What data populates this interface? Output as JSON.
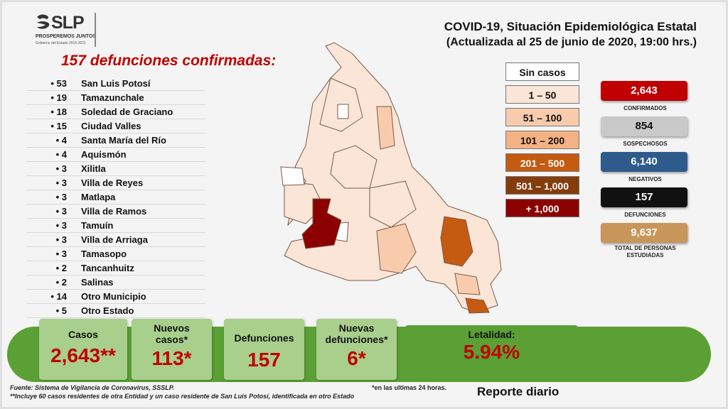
{
  "logo": {
    "word": "SLP",
    "tagline": "PROSPEREMOS JUNTOS",
    "government": "Gobierno del Estado 2015-2021"
  },
  "header": {
    "title": "COVID-19, Situación Epidemiológica Estatal",
    "subtitle": "(Actualizada al 25 de junio de 2020, 19:00 hrs.)"
  },
  "deaths": {
    "heading": "157 defunciones confirmadas:",
    "items": [
      {
        "count": "• 53",
        "name": "San Luis Potosí"
      },
      {
        "count": "• 19",
        "name": "Tamazunchale"
      },
      {
        "count": "• 18",
        "name": "Soledad de Graciano"
      },
      {
        "count": "• 15",
        "name": "Ciudad Valles"
      },
      {
        "count": "• 4",
        "name": "Santa María del Río"
      },
      {
        "count": "• 4",
        "name": "Aquismón"
      },
      {
        "count": "• 3",
        "name": "Xilitla"
      },
      {
        "count": "• 3",
        "name": "Villa de Reyes"
      },
      {
        "count": "• 3",
        "name": "Matlapa"
      },
      {
        "count": "• 3",
        "name": "Villa de Ramos"
      },
      {
        "count": "• 3",
        "name": "Tamuín"
      },
      {
        "count": "• 3",
        "name": "Villa de Arriaga"
      },
      {
        "count": "• 3",
        "name": "Tamasopo"
      },
      {
        "count": "• 2",
        "name": "Tancanhuitz"
      },
      {
        "count": "• 2",
        "name": "Salinas"
      },
      {
        "count": "• 14",
        "name": "Otro Municipio"
      },
      {
        "count": "• 5",
        "name": "Otro Estado"
      }
    ]
  },
  "legend": [
    {
      "label": "Sin casos",
      "bg": "#ffffff",
      "fg": "#111111"
    },
    {
      "label": "1 – 50",
      "bg": "#fbe5d6",
      "fg": "#111111"
    },
    {
      "label": "51 – 100",
      "bg": "#f8cbad",
      "fg": "#111111"
    },
    {
      "label": "101 – 200",
      "bg": "#f4b183",
      "fg": "#111111"
    },
    {
      "label": "201 – 500",
      "bg": "#c55a11",
      "fg": "#ffffff"
    },
    {
      "label": "501 – 1,000",
      "bg": "#843c0c",
      "fg": "#ffffff"
    },
    {
      "label": "+ 1,000",
      "bg": "#8b0000",
      "fg": "#ffffff"
    }
  ],
  "stats": [
    {
      "value": "2,643",
      "label": "CONFIRMADOS",
      "bg": "#c00000",
      "fg": "#ffffff"
    },
    {
      "value": "854",
      "label": "SOSPECHOSOS",
      "bg": "#c9c9c9",
      "fg": "#111111"
    },
    {
      "value": "6,140",
      "label": "NEGATIVOS",
      "bg": "#2e5b8c",
      "fg": "#ffffff"
    },
    {
      "value": "157",
      "label": "DEFUNCIONES",
      "bg": "#111111",
      "fg": "#ffffff"
    },
    {
      "value": "9,637",
      "label": "TOTAL DE PERSONAS ESTUDIADAS",
      "bg": "#c8955b",
      "fg": "#ffffff"
    }
  ],
  "summary": {
    "casos": {
      "label": "Casos",
      "value": "2,643**"
    },
    "nuevos_casos": {
      "label": "Nuevos casos*",
      "value": "113*"
    },
    "defunciones": {
      "label": "Defunciones",
      "value": "157"
    },
    "nuevas_defunciones": {
      "label": "Nuevas defunciones*",
      "value": "6*"
    },
    "letalidad": {
      "label": "Letalidad:",
      "value": "5.94%"
    }
  },
  "footer": {
    "source": "Fuente: Sistema de Vigilancia de Coronavirus, SSSLP.",
    "note": "**Incluye 60 casos residentes de otra Entidad y un caso residente de San Luis Potosí, identificada en otro Estado",
    "asterisk_note": "*en las ultimas 24 horas.",
    "report": "Reporte diario"
  },
  "colors": {
    "accent_red": "#c00000",
    "banner_green": "#5aa035",
    "panel_green": "#a9cf8c"
  }
}
